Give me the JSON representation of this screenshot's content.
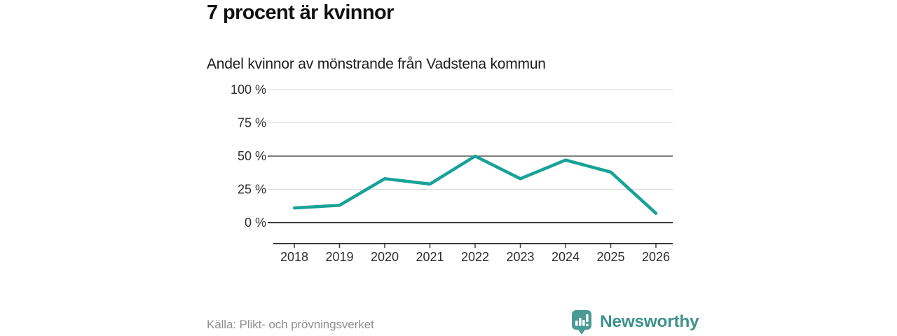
{
  "header": {
    "title": "7 procent är kvinnor",
    "subtitle": "Andel kvinnor av mönstrande från Vadstena kommun"
  },
  "chart_data": {
    "type": "line",
    "title": "7 procent är kvinnor",
    "subtitle": "Andel kvinnor av mönstrande från Vadstena kommun",
    "categories": [
      "2018",
      "2019",
      "2020",
      "2021",
      "2022",
      "2023",
      "2024",
      "2025",
      "2026"
    ],
    "series": [
      {
        "name": "Andel kvinnor av mönstrande",
        "values": [
          11,
          13,
          33,
          29,
          50,
          33,
          47,
          38,
          7
        ]
      }
    ],
    "unit": "%",
    "xlabel": "",
    "ylabel": "",
    "ylim": [
      0,
      100
    ],
    "yticks": [
      0,
      25,
      50,
      75,
      100
    ],
    "ytick_labels": [
      "0 %",
      "25 %",
      "50 %",
      "75 %",
      "100 %"
    ],
    "emphasized_gridlines": [
      0,
      50
    ],
    "grid": "horizontal",
    "legend": "none",
    "line_color": "#17a297"
  },
  "footer": {
    "source": "Källa: Plikt- och prövningsverket",
    "brand": "Newsworthy"
  },
  "colors": {
    "accent_line": "#17a297",
    "brand_teal": "#3f918e",
    "logo_fill": "#4a9b94",
    "grid_light": "#d8d8d8",
    "grid_dark": "#3a3a3a",
    "grid_mid": "#565656",
    "axis_text": "#2e2e2e",
    "source_text": "#8f8f8f"
  }
}
